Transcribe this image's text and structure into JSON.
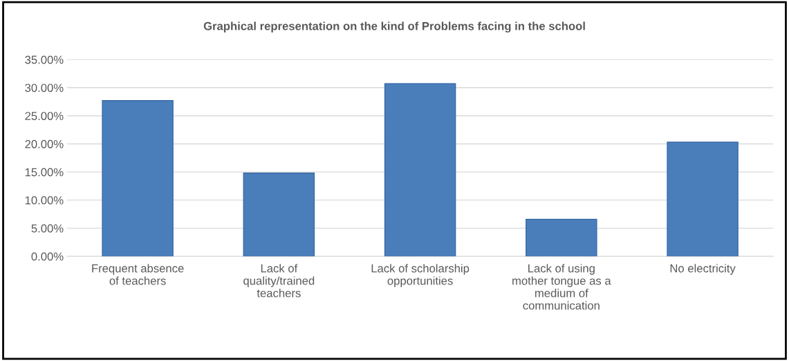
{
  "chart_data": {
    "type": "bar",
    "title": "Graphical representation on the kind of Problems facing in the school",
    "categories": [
      "Frequent absence\nof teachers",
      "Lack of\nquality/trained\nteachers",
      "Lack of scholarship\nopportunities",
      "Lack of using\nmother tongue as a\nmedium of\ncommunication",
      "No electricity"
    ],
    "values": [
      27.7,
      14.8,
      30.7,
      6.6,
      20.3
    ],
    "color": "#4a7ebb",
    "ylim": [
      0,
      35
    ],
    "yticks": [
      {
        "value": 0,
        "label": "0.00%"
      },
      {
        "value": 5,
        "label": "5.00%"
      },
      {
        "value": 10,
        "label": "10.00%"
      },
      {
        "value": 15,
        "label": "15.00%"
      },
      {
        "value": 20,
        "label": "20.00%"
      },
      {
        "value": 25,
        "label": "25.00%"
      },
      {
        "value": 30,
        "label": "30.00%"
      },
      {
        "value": 35,
        "label": "35.00%"
      }
    ],
    "grid": "y"
  }
}
